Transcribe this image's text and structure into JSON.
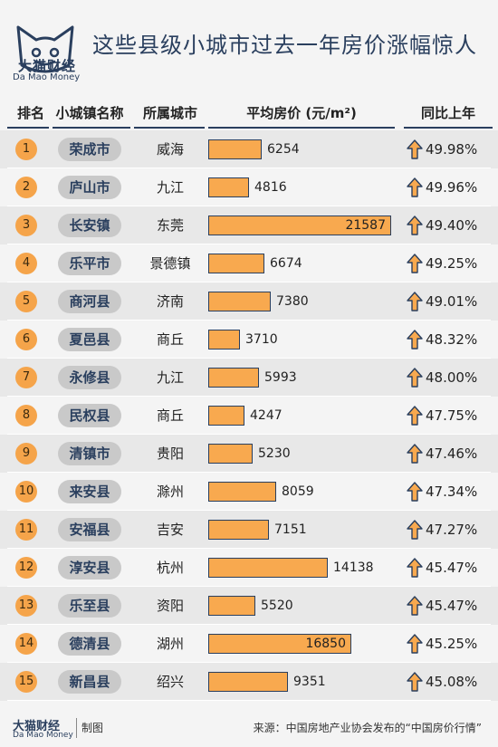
{
  "brand": {
    "name_cn": "大猫财经",
    "name_en": "Da Mao Money"
  },
  "title": "这些县级小城市过去一年房价涨幅惊人",
  "columns": {
    "rank": "排名",
    "town": "小城镇名称",
    "city": "所属城市",
    "price": "平均房价 (元/m²)",
    "yoy": "同比上年"
  },
  "footer": {
    "made_by": "制图",
    "source": "来源：中国房地产业协会发布的“中国房价行情”"
  },
  "colors": {
    "accent": "#f8a94f",
    "dark": "#2a3f5e",
    "pill": "#c9c9c9"
  },
  "icons": {
    "increase": "up-arrow-icon"
  },
  "chart_data": {
    "type": "table",
    "title": "这些县级小城市过去一年房价涨幅惊人",
    "columns": [
      "排名",
      "小城镇名称",
      "所属城市",
      "平均房价 (元/m²)",
      "同比上年"
    ],
    "rows": [
      {
        "rank": "1",
        "town": "荣成市",
        "city": "威海",
        "price": 6254,
        "yoy": "49.98%"
      },
      {
        "rank": "2",
        "town": "庐山市",
        "city": "九江",
        "price": 4816,
        "yoy": "49.96%"
      },
      {
        "rank": "3",
        "town": "长安镇",
        "city": "东莞",
        "price": 21587,
        "yoy": "49.40%"
      },
      {
        "rank": "4",
        "town": "乐平市",
        "city": "景德镇",
        "price": 6674,
        "yoy": "49.25%"
      },
      {
        "rank": "5",
        "town": "商河县",
        "city": "济南",
        "price": 7380,
        "yoy": "49.01%"
      },
      {
        "rank": "6",
        "town": "夏邑县",
        "city": "商丘",
        "price": 3710,
        "yoy": "48.32%"
      },
      {
        "rank": "7",
        "town": "永修县",
        "city": "九江",
        "price": 5993,
        "yoy": "48.00%"
      },
      {
        "rank": "8",
        "town": "民权县",
        "city": "商丘",
        "price": 4247,
        "yoy": "47.75%"
      },
      {
        "rank": "9",
        "town": "清镇市",
        "city": "贵阳",
        "price": 5230,
        "yoy": "47.46%"
      },
      {
        "rank": "10",
        "town": "来安县",
        "city": "滁州",
        "price": 8059,
        "yoy": "47.34%"
      },
      {
        "rank": "11",
        "town": "安福县",
        "city": "吉安",
        "price": 7151,
        "yoy": "47.27%"
      },
      {
        "rank": "12",
        "town": "淳安县",
        "city": "杭州",
        "price": 14138,
        "yoy": "45.47%"
      },
      {
        "rank": "13",
        "town": "乐至县",
        "city": "资阳",
        "price": 5520,
        "yoy": "45.47%"
      },
      {
        "rank": "14",
        "town": "德清县",
        "city": "湖州",
        "price": 16850,
        "yoy": "45.25%"
      },
      {
        "rank": "15",
        "town": "新昌县",
        "city": "绍兴",
        "price": 9351,
        "yoy": "45.08%"
      }
    ]
  }
}
